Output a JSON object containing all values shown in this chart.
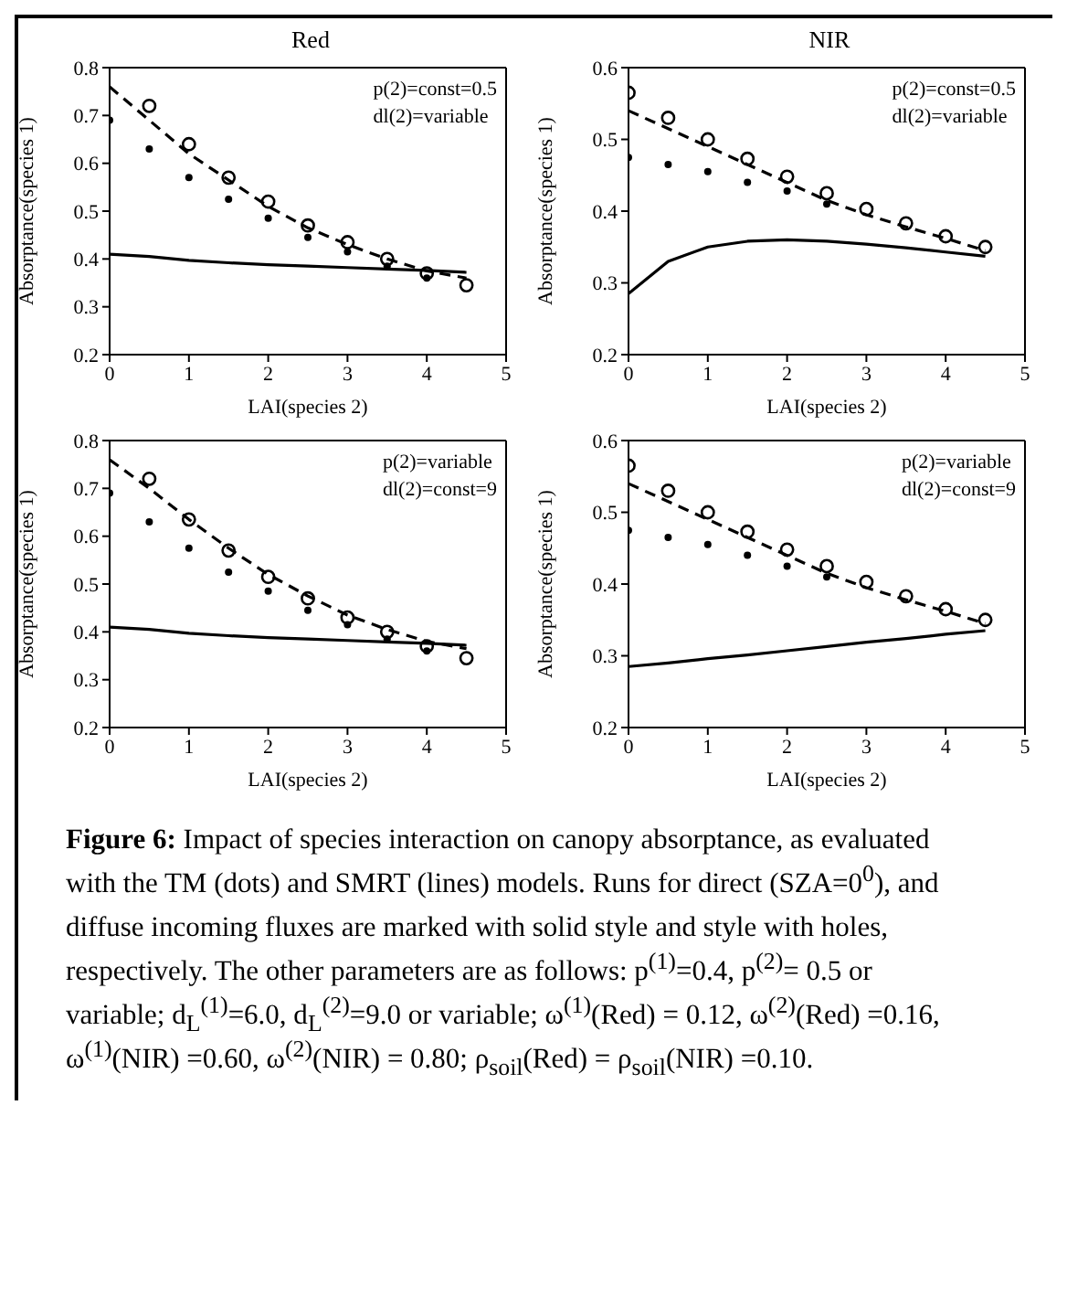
{
  "chart_data": [
    {
      "type": "line",
      "title": "Red",
      "xlabel": "LAI(species 2)",
      "ylabel": "Absorptance(species 1)",
      "annotations": [
        "p(2)=const=0.5",
        "dl(2)=variable"
      ],
      "x": [
        0,
        0.5,
        1,
        1.5,
        2,
        2.5,
        3,
        3.5,
        4,
        4.5
      ],
      "xlim": [
        0,
        5
      ],
      "xticks": [
        0,
        1,
        2,
        3,
        4,
        5
      ],
      "ylim": [
        0.2,
        0.8
      ],
      "yticks": [
        0.2,
        0.3,
        0.4,
        0.5,
        0.6,
        0.7,
        0.8
      ],
      "series": [
        {
          "type": "line",
          "color": "#000000",
          "line_style": "solid",
          "marker": "none",
          "values": [
            0.41,
            0.405,
            0.397,
            0.392,
            0.388,
            0.385,
            0.382,
            0.379,
            0.376,
            0.372
          ]
        },
        {
          "type": "line",
          "color": "#000000",
          "line_style": "dashed",
          "marker": "none",
          "values": [
            0.76,
            0.69,
            0.62,
            0.565,
            0.51,
            0.465,
            0.43,
            0.4,
            0.375,
            0.36
          ]
        },
        {
          "type": "scatter",
          "color": "#000000",
          "marker": "circle",
          "values": [
            0.69,
            0.63,
            0.57,
            0.525,
            0.485,
            0.445,
            0.415,
            0.385,
            0.36,
            null
          ]
        },
        {
          "type": "scatter",
          "color": "#000000",
          "marker": "circle",
          "values": [
            null,
            0.72,
            0.64,
            0.57,
            0.52,
            0.47,
            0.435,
            0.4,
            0.37,
            0.345
          ]
        }
      ]
    },
    {
      "type": "line",
      "title": "NIR",
      "xlabel": "LAI(species 2)",
      "ylabel": "Absorptance(species 1)",
      "annotations": [
        "p(2)=const=0.5",
        "dl(2)=variable"
      ],
      "x": [
        0,
        0.5,
        1,
        1.5,
        2,
        2.5,
        3,
        3.5,
        4,
        4.5
      ],
      "xlim": [
        0,
        5
      ],
      "xticks": [
        0,
        1,
        2,
        3,
        4,
        5
      ],
      "ylim": [
        0.2,
        0.6
      ],
      "yticks": [
        0.2,
        0.3,
        0.4,
        0.5,
        0.6
      ],
      "series": [
        {
          "type": "line",
          "color": "#000000",
          "line_style": "solid",
          "marker": "none",
          "values": [
            0.285,
            0.33,
            0.35,
            0.358,
            0.36,
            0.358,
            0.354,
            0.349,
            0.343,
            0.337
          ]
        },
        {
          "type": "line",
          "color": "#000000",
          "line_style": "dashed",
          "marker": "none",
          "values": [
            0.54,
            0.515,
            0.49,
            0.465,
            0.44,
            0.415,
            0.395,
            0.378,
            0.362,
            0.345
          ]
        },
        {
          "type": "scatter",
          "color": "#000000",
          "marker": "circle",
          "values": [
            0.475,
            0.465,
            0.455,
            0.44,
            0.428,
            0.41,
            null,
            null,
            null,
            null
          ]
        },
        {
          "type": "scatter",
          "color": "#000000",
          "marker": "circle",
          "values": [
            0.565,
            0.53,
            0.5,
            0.473,
            0.448,
            0.425,
            0.403,
            0.383,
            0.365,
            0.35
          ]
        }
      ]
    },
    {
      "type": "line",
      "xlabel": "LAI(species 2)",
      "ylabel": "Absorptance(species 1)",
      "annotations": [
        "p(2)=variable",
        "dl(2)=const=9"
      ],
      "x": [
        0,
        0.5,
        1,
        1.5,
        2,
        2.5,
        3,
        3.5,
        4,
        4.5
      ],
      "xlim": [
        0,
        5
      ],
      "xticks": [
        0,
        1,
        2,
        3,
        4,
        5
      ],
      "ylim": [
        0.2,
        0.8
      ],
      "yticks": [
        0.2,
        0.3,
        0.4,
        0.5,
        0.6,
        0.7,
        0.8
      ],
      "series": [
        {
          "type": "line",
          "color": "#000000",
          "line_style": "solid",
          "marker": "none",
          "values": [
            0.41,
            0.405,
            0.397,
            0.392,
            0.388,
            0.385,
            0.382,
            0.379,
            0.376,
            0.372
          ]
        },
        {
          "type": "line",
          "color": "#000000",
          "line_style": "dashed",
          "marker": "none",
          "values": [
            0.76,
            0.7,
            0.635,
            0.575,
            0.52,
            0.475,
            0.435,
            0.405,
            0.38,
            0.365
          ]
        },
        {
          "type": "scatter",
          "color": "#000000",
          "marker": "circle",
          "values": [
            0.69,
            0.63,
            0.575,
            0.525,
            0.485,
            0.445,
            0.415,
            0.385,
            0.36,
            null
          ]
        },
        {
          "type": "scatter",
          "color": "#000000",
          "marker": "circle",
          "values": [
            null,
            0.72,
            0.635,
            0.57,
            0.515,
            0.47,
            0.43,
            0.4,
            0.37,
            0.345
          ]
        }
      ]
    },
    {
      "type": "line",
      "xlabel": "LAI(species 2)",
      "ylabel": "Absorptance(species 1)",
      "annotations": [
        "p(2)=variable",
        "dl(2)=const=9"
      ],
      "x": [
        0,
        0.5,
        1,
        1.5,
        2,
        2.5,
        3,
        3.5,
        4,
        4.5
      ],
      "xlim": [
        0,
        5
      ],
      "xticks": [
        0,
        1,
        2,
        3,
        4,
        5
      ],
      "ylim": [
        0.2,
        0.6
      ],
      "yticks": [
        0.2,
        0.3,
        0.4,
        0.5,
        0.6
      ],
      "series": [
        {
          "type": "line",
          "color": "#000000",
          "line_style": "solid",
          "marker": "none",
          "values": [
            0.285,
            0.29,
            0.296,
            0.301,
            0.307,
            0.313,
            0.319,
            0.324,
            0.33,
            0.335
          ]
        },
        {
          "type": "line",
          "color": "#000000",
          "line_style": "dashed",
          "marker": "none",
          "values": [
            0.54,
            0.515,
            0.49,
            0.465,
            0.44,
            0.415,
            0.395,
            0.378,
            0.362,
            0.345
          ]
        },
        {
          "type": "scatter",
          "color": "#000000",
          "marker": "circle",
          "values": [
            0.475,
            0.465,
            0.455,
            0.44,
            0.425,
            0.41,
            null,
            null,
            null,
            null
          ]
        },
        {
          "type": "scatter",
          "color": "#000000",
          "marker": "circle",
          "values": [
            0.565,
            0.53,
            0.5,
            0.473,
            0.448,
            0.425,
            0.403,
            0.383,
            0.365,
            0.35
          ]
        }
      ]
    },
    {
      "type": "other",
      "annotations": [
        "Figure 6:",
        "Impact of species interaction on canopy absorptance, as evaluated with the TM (dots) and SMRT (lines) models. Runs for direct (SZA=0$^{0}$), and diffuse incoming fluxes are marked with solid style and style with holes, respectively. The other parameters are as follows: p$^{(1)}$=0.4, p$^{(2)}$= 0.5 or variable; d$_{L}$$^{(1)}$=6.0, d$_{L}$$^{(2)}$=9.0 or variable; ω$^{(1)}$(Red) = 0.12, ω$^{(2)}$(Red) =0.16, ω$^{(1)}$(NIR) =0.60, ω$^{(2)}$(NIR) = 0.80; ρ$_{soil}$(Red) = ρ$_{soil}$(NIR) =0.10."
      ]
    }
  ]
}
